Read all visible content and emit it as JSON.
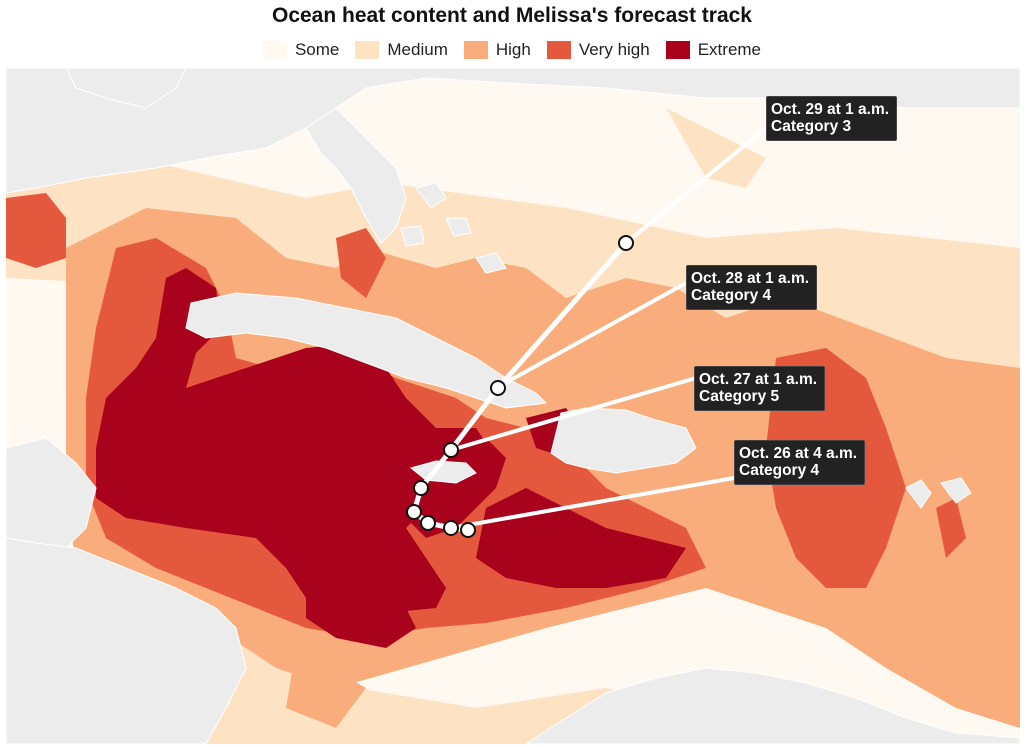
{
  "title": "Ocean heat content and Melissa's forecast track",
  "legend": [
    {
      "label": "Some",
      "color": "#fff9f2"
    },
    {
      "label": "Medium",
      "color": "#fde3c4"
    },
    {
      "label": "High",
      "color": "#f9ad7c"
    },
    {
      "label": "Very high",
      "color": "#e4593d"
    },
    {
      "label": "Extreme",
      "color": "#a8021c"
    }
  ],
  "colors": {
    "land": "#ececec",
    "land_border": "#ffffff",
    "track": "#ffffff",
    "point_stroke": "#111111"
  },
  "callouts": [
    {
      "id": "oct29",
      "line1": "Oct. 29 at 1 a.m.",
      "line2": "Category 3"
    },
    {
      "id": "oct28",
      "line1": "Oct. 28 at 1 a.m.",
      "line2": "Category 4"
    },
    {
      "id": "oct27",
      "line1": "Oct. 27 at 1 a.m.",
      "line2": "Category 5"
    },
    {
      "id": "oct26",
      "line1": "Oct. 26 at 4 a.m.",
      "line2": "Category 4"
    }
  ]
}
